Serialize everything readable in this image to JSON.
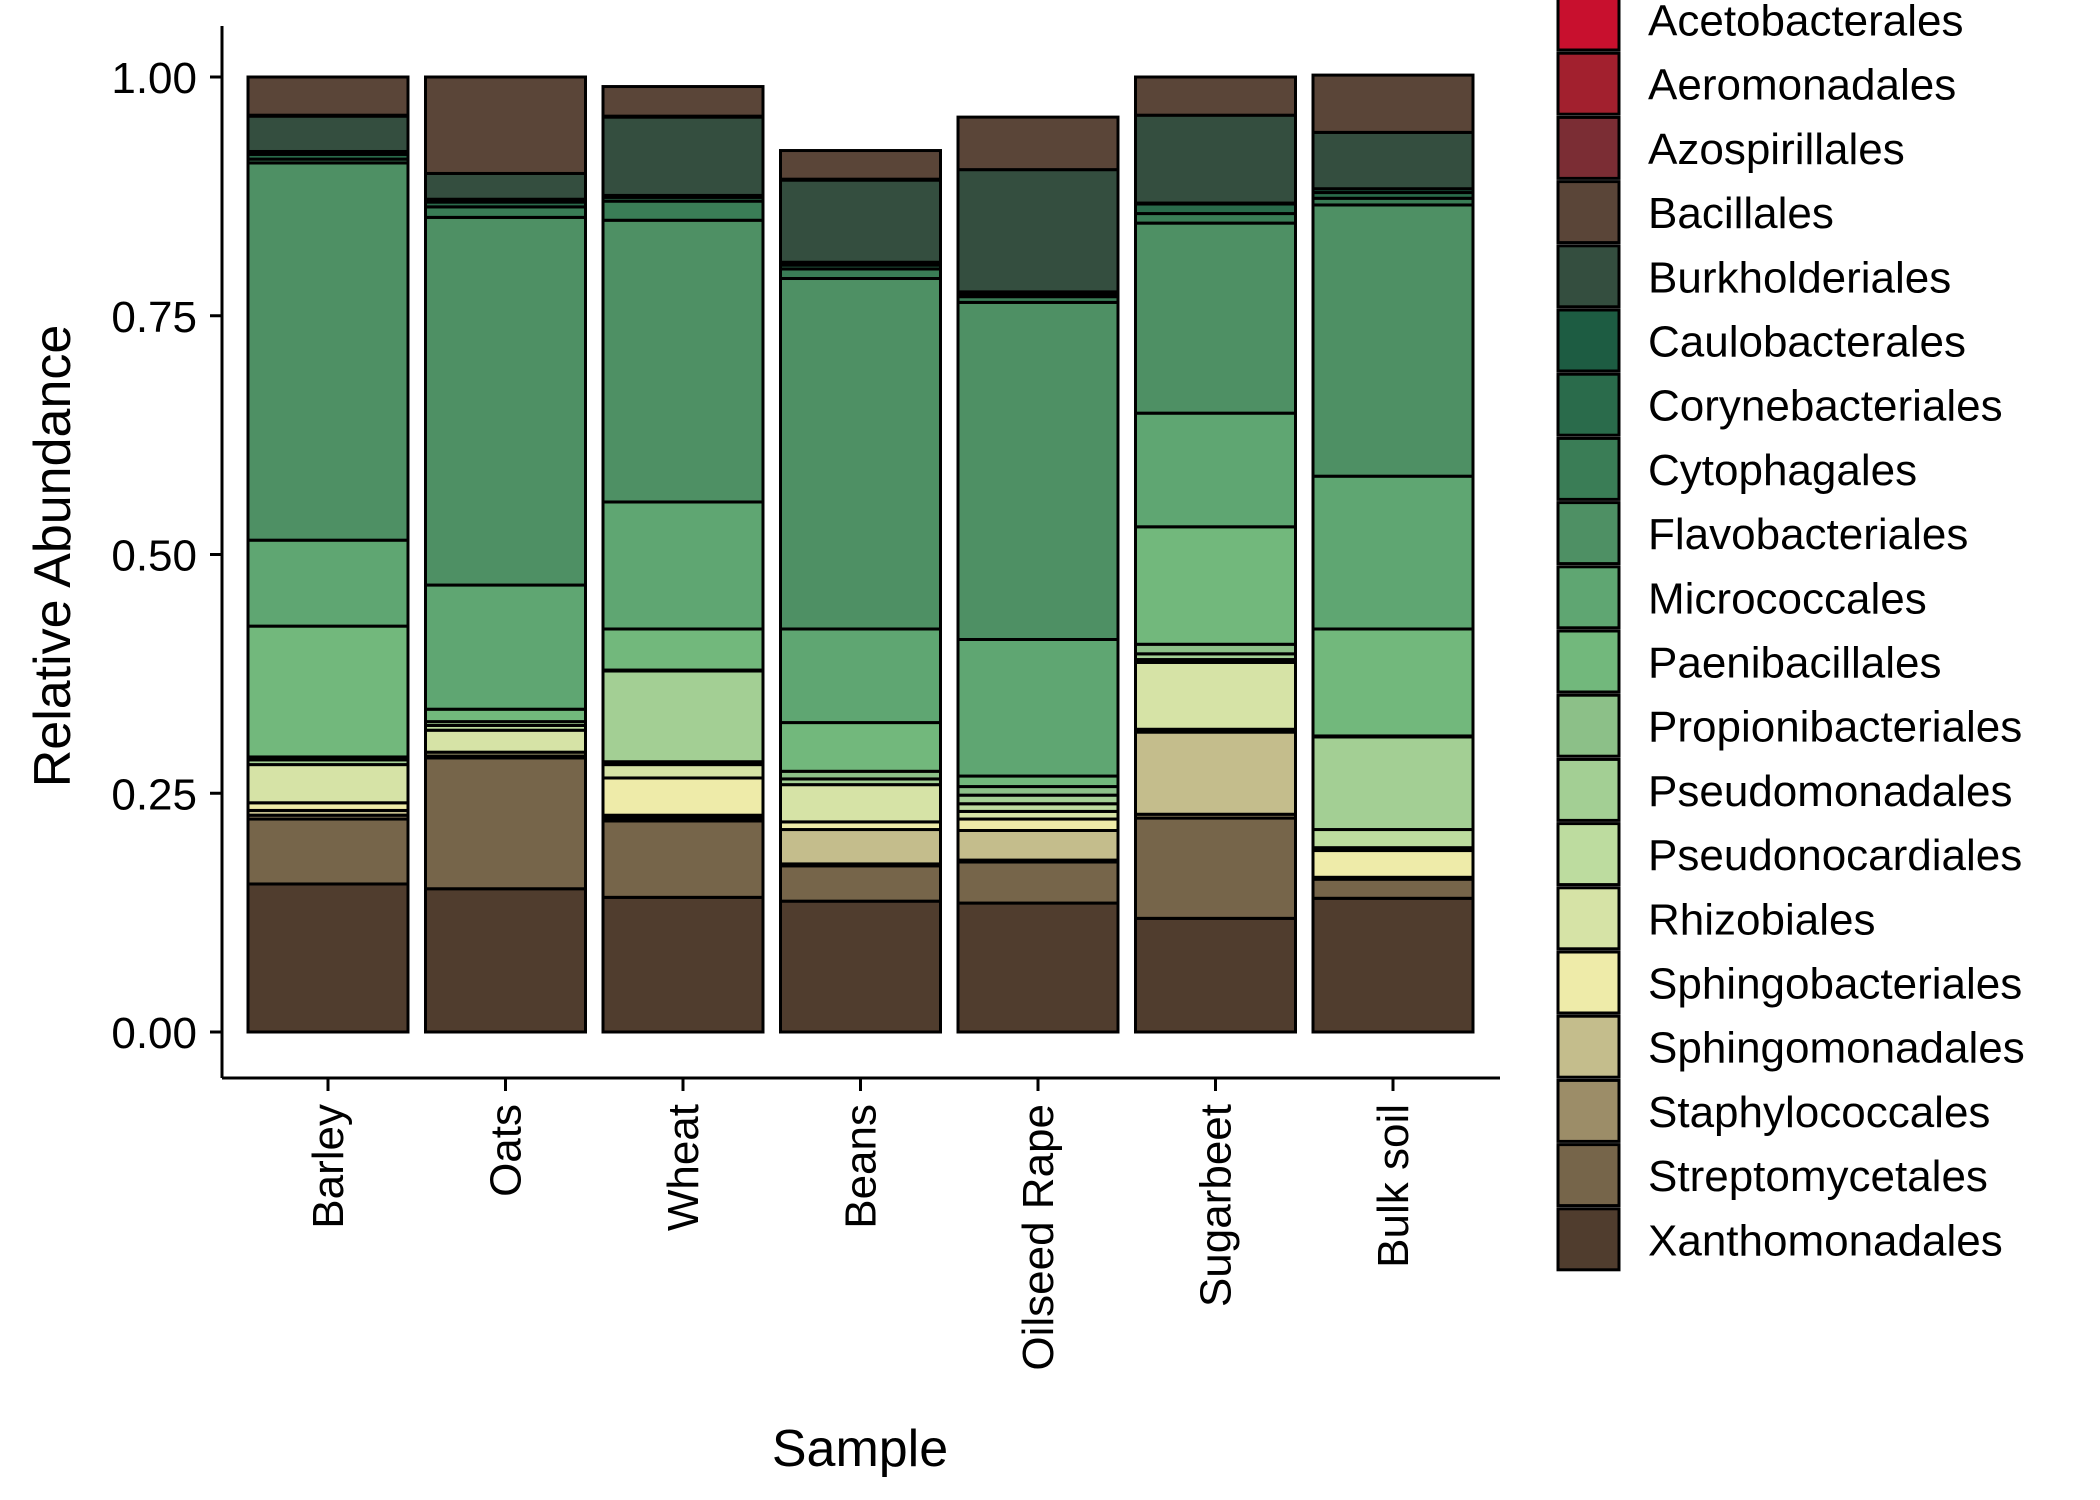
{
  "chart_data": {
    "type": "bar",
    "stacked": true,
    "title": "",
    "xlabel": "Sample",
    "ylabel": "Relative Abundance",
    "ylim": [
      0,
      1
    ],
    "yticks": [
      0,
      0.25,
      0.5,
      0.75,
      1
    ],
    "ytick_labels": [
      "0.00",
      "0.25",
      "0.50",
      "0.75",
      "1.00"
    ],
    "categories": [
      "Barley",
      "Oats",
      "Wheat",
      "Beans",
      "Oilseed Rape",
      "Sugarbeet",
      "Bulk soil"
    ],
    "legend_position": "right",
    "legend_entries": [
      {
        "name": "Acetobacterales",
        "color": "#c8102e"
      },
      {
        "name": "Aeromonadales",
        "color": "#a2202e"
      },
      {
        "name": "Azospirillales",
        "color": "#7b2d34"
      },
      {
        "name": "Bacillales",
        "color": "#5a4538"
      },
      {
        "name": "Burkholderiales",
        "color": "#344e3f"
      },
      {
        "name": "Caulobacterales",
        "color": "#1d5c42"
      },
      {
        "name": "Corynebacteriales",
        "color": "#2a6b4b"
      },
      {
        "name": "Cytophagales",
        "color": "#3a7d56"
      },
      {
        "name": "Flavobacteriales",
        "color": "#4e9064"
      },
      {
        "name": "Micrococcales",
        "color": "#5fa672"
      },
      {
        "name": "Paenibacillales",
        "color": "#72b87c"
      },
      {
        "name": "Propionibacteriales",
        "color": "#8cc088"
      },
      {
        "name": "Pseudomonadales",
        "color": "#a3cf94"
      },
      {
        "name": "Pseudonocardiales",
        "color": "#bddc9f"
      },
      {
        "name": "Rhizobiales",
        "color": "#d6e3a6"
      },
      {
        "name": "Sphingobacteriales",
        "color": "#eeeba9"
      },
      {
        "name": "Sphingomonadales",
        "color": "#c4bd8c"
      },
      {
        "name": "Staphylococcales",
        "color": "#9c8d68"
      },
      {
        "name": "Streptomycetales",
        "color": "#76654a"
      },
      {
        "name": "Xanthomonadales",
        "color": "#503d2e"
      }
    ],
    "series": [
      {
        "name": "Xanthomonadales",
        "values": [
          0.155,
          0.15,
          0.141,
          0.137,
          0.135,
          0.119,
          0.14
        ]
      },
      {
        "name": "Streptomycetales",
        "values": [
          0.068,
          0.137,
          0.08,
          0.037,
          0.043,
          0.105,
          0.02
        ]
      },
      {
        "name": "Staphylococcales",
        "values": [
          0.004,
          0.002,
          0.003,
          0.002,
          0.002,
          0.004,
          0.0
        ]
      },
      {
        "name": "Sphingomonadales",
        "values": [
          0.005,
          0.004,
          0.003,
          0.036,
          0.031,
          0.086,
          0.002
        ]
      },
      {
        "name": "Sphingobacteriales",
        "values": [
          0.008,
          0.0,
          0.039,
          0.008,
          0.012,
          0.003,
          0.028
        ]
      },
      {
        "name": "Rhizobiales",
        "values": [
          0.04,
          0.023,
          0.014,
          0.039,
          0.008,
          0.07,
          0.003
        ]
      },
      {
        "name": "Pseudonocardiales",
        "values": [
          0.0,
          0.005,
          0.003,
          0.0,
          0.008,
          0.003,
          0.019
        ]
      },
      {
        "name": "Pseudomonadales",
        "values": [
          0.005,
          0.004,
          0.095,
          0.006,
          0.009,
          0.006,
          0.097
        ]
      },
      {
        "name": "Propionibacteriales",
        "values": [
          0.003,
          0.0,
          0.001,
          0.008,
          0.009,
          0.01,
          0.001
        ]
      },
      {
        "name": "Paenibacillales",
        "values": [
          0.137,
          0.013,
          0.043,
          0.051,
          0.011,
          0.123,
          0.112
        ]
      },
      {
        "name": "Micrococcales",
        "values": [
          0.09,
          0.13,
          0.133,
          0.098,
          0.143,
          0.119,
          0.16
        ]
      },
      {
        "name": "Flavobacteriales",
        "values": [
          0.395,
          0.385,
          0.295,
          0.367,
          0.353,
          0.199,
          0.284
        ]
      },
      {
        "name": "Cytophagales",
        "values": [
          0.004,
          0.011,
          0.02,
          0.01,
          0.006,
          0.01,
          0.007
        ]
      },
      {
        "name": "Corynebacteriales",
        "values": [
          0.005,
          0.005,
          0.004,
          0.004,
          0.003,
          0.01,
          0.006
        ]
      },
      {
        "name": "Caulobacterales",
        "values": [
          0.003,
          0.003,
          0.002,
          0.003,
          0.002,
          0.001,
          0.004
        ]
      },
      {
        "name": "Burkholderiales",
        "values": [
          0.037,
          0.027,
          0.082,
          0.086,
          0.128,
          0.092,
          0.059
        ]
      },
      {
        "name": "Azospirillales",
        "values": [
          0.001,
          0.0,
          0.001,
          0.001,
          0.0,
          0.0,
          0.0
        ]
      },
      {
        "name": "Aeromonadales",
        "values": [
          0.0,
          0.0,
          0.0,
          0.0,
          0.0,
          0.0,
          0.0
        ]
      },
      {
        "name": "Acetobacterales",
        "values": [
          0.0,
          0.0,
          0.0,
          0.0,
          0.0,
          0.0,
          0.0
        ]
      },
      {
        "name": "Bacillales",
        "values": [
          0.04,
          0.101,
          0.031,
          0.03,
          0.055,
          0.04,
          0.06
        ]
      }
    ]
  }
}
